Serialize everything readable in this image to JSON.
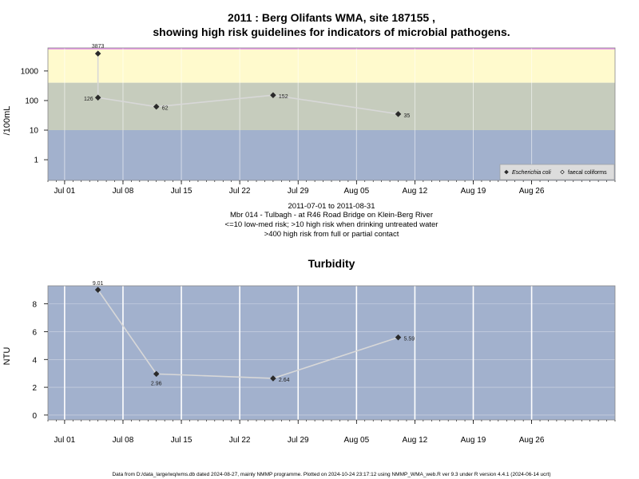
{
  "chart_data": [
    {
      "type": "line",
      "title_line1": "2011 : Berg Olifants WMA, site 187155 ,",
      "title_line2": "showing high risk guidelines for indicators of microbial pathogens.",
      "ylabel": "/100mL",
      "y_scale": "log10",
      "y_ticks": [
        "1",
        "10",
        "100",
        "1000"
      ],
      "x_ticks": [
        "Jul 01",
        "Jul 08",
        "Jul 15",
        "Jul 22",
        "Jul 29",
        "Aug 05",
        "Aug 12",
        "Aug 19",
        "Aug 26"
      ],
      "x_tick_dates": [
        "2011-07-01",
        "2011-07-08",
        "2011-07-15",
        "2011-07-22",
        "2011-07-29",
        "2011-08-05",
        "2011-08-12",
        "2011-08-19",
        "2011-08-26"
      ],
      "xlim": [
        "2011-06-29",
        "2011-09-05"
      ],
      "bands": [
        {
          "from": 400,
          "to": 6000,
          "color": "#fffacd"
        },
        {
          "from": 10,
          "to": 400,
          "color": "#c6ccbd"
        },
        {
          "from": 0.1,
          "to": 10,
          "color": "#a2b1cd"
        }
      ],
      "top_line_color": "#e8a0e8",
      "series": [
        {
          "name": "Escherichia coli",
          "marker": "filled-diamond",
          "points": [
            {
              "x": "2011-07-05",
              "y": 126,
              "label": "126"
            },
            {
              "x": "2011-07-12",
              "y": 62,
              "label": "62"
            },
            {
              "x": "2011-07-26",
              "y": 152,
              "label": "152"
            },
            {
              "x": "2011-08-10",
              "y": 35,
              "label": "35"
            }
          ]
        },
        {
          "name": "faecal coliforms",
          "marker": "open-diamond",
          "points": [
            {
              "x": "2011-07-05",
              "y": 3873,
              "label": "3873"
            }
          ]
        }
      ],
      "legend_position": "bottom-right",
      "grid": true
    },
    {
      "type": "line",
      "title": "Turbidity",
      "ylabel": "NTU",
      "y_ticks": [
        "0",
        "2",
        "4",
        "6",
        "8"
      ],
      "ylim": [
        -0.35,
        9.3
      ],
      "x_ticks": [
        "Jul 01",
        "Jul 08",
        "Jul 15",
        "Jul 22",
        "Jul 29",
        "Aug 05",
        "Aug 12",
        "Aug 19",
        "Aug 26"
      ],
      "x_tick_dates": [
        "2011-07-01",
        "2011-07-08",
        "2011-07-15",
        "2011-07-22",
        "2011-07-29",
        "2011-08-05",
        "2011-08-12",
        "2011-08-19",
        "2011-08-26"
      ],
      "xlim": [
        "2011-06-29",
        "2011-09-05"
      ],
      "background": "#a2b1cd",
      "grid": true,
      "series": [
        {
          "points": [
            {
              "x": "2011-07-05",
              "y": 9.01,
              "label": "9.01"
            },
            {
              "x": "2011-07-12",
              "y": 2.96,
              "label": "2.96"
            },
            {
              "x": "2011-07-26",
              "y": 2.64,
              "label": "2.64"
            },
            {
              "x": "2011-08-10",
              "y": 5.59,
              "label": "5.59"
            }
          ]
        }
      ]
    }
  ],
  "subtitle_lines": [
    "2011-07-01 to 2011-08-31",
    "Mbr 014 - Tulbagh - at R46 Road Bridge on Klein-Berg River",
    "<=10 low-med risk; >10 high risk when drinking untreated water",
    ">400 high risk from full or partial contact"
  ],
  "footer": "Data from D:/data_large/wq/wms.db dated 2024-08-27, mainly NMMP programme. Plotted on 2024-10-24 23:17:12 using NMMP_WMA_web.R ver 9.3 under R version 4.4.1 (2024-06-14 ucrt)"
}
